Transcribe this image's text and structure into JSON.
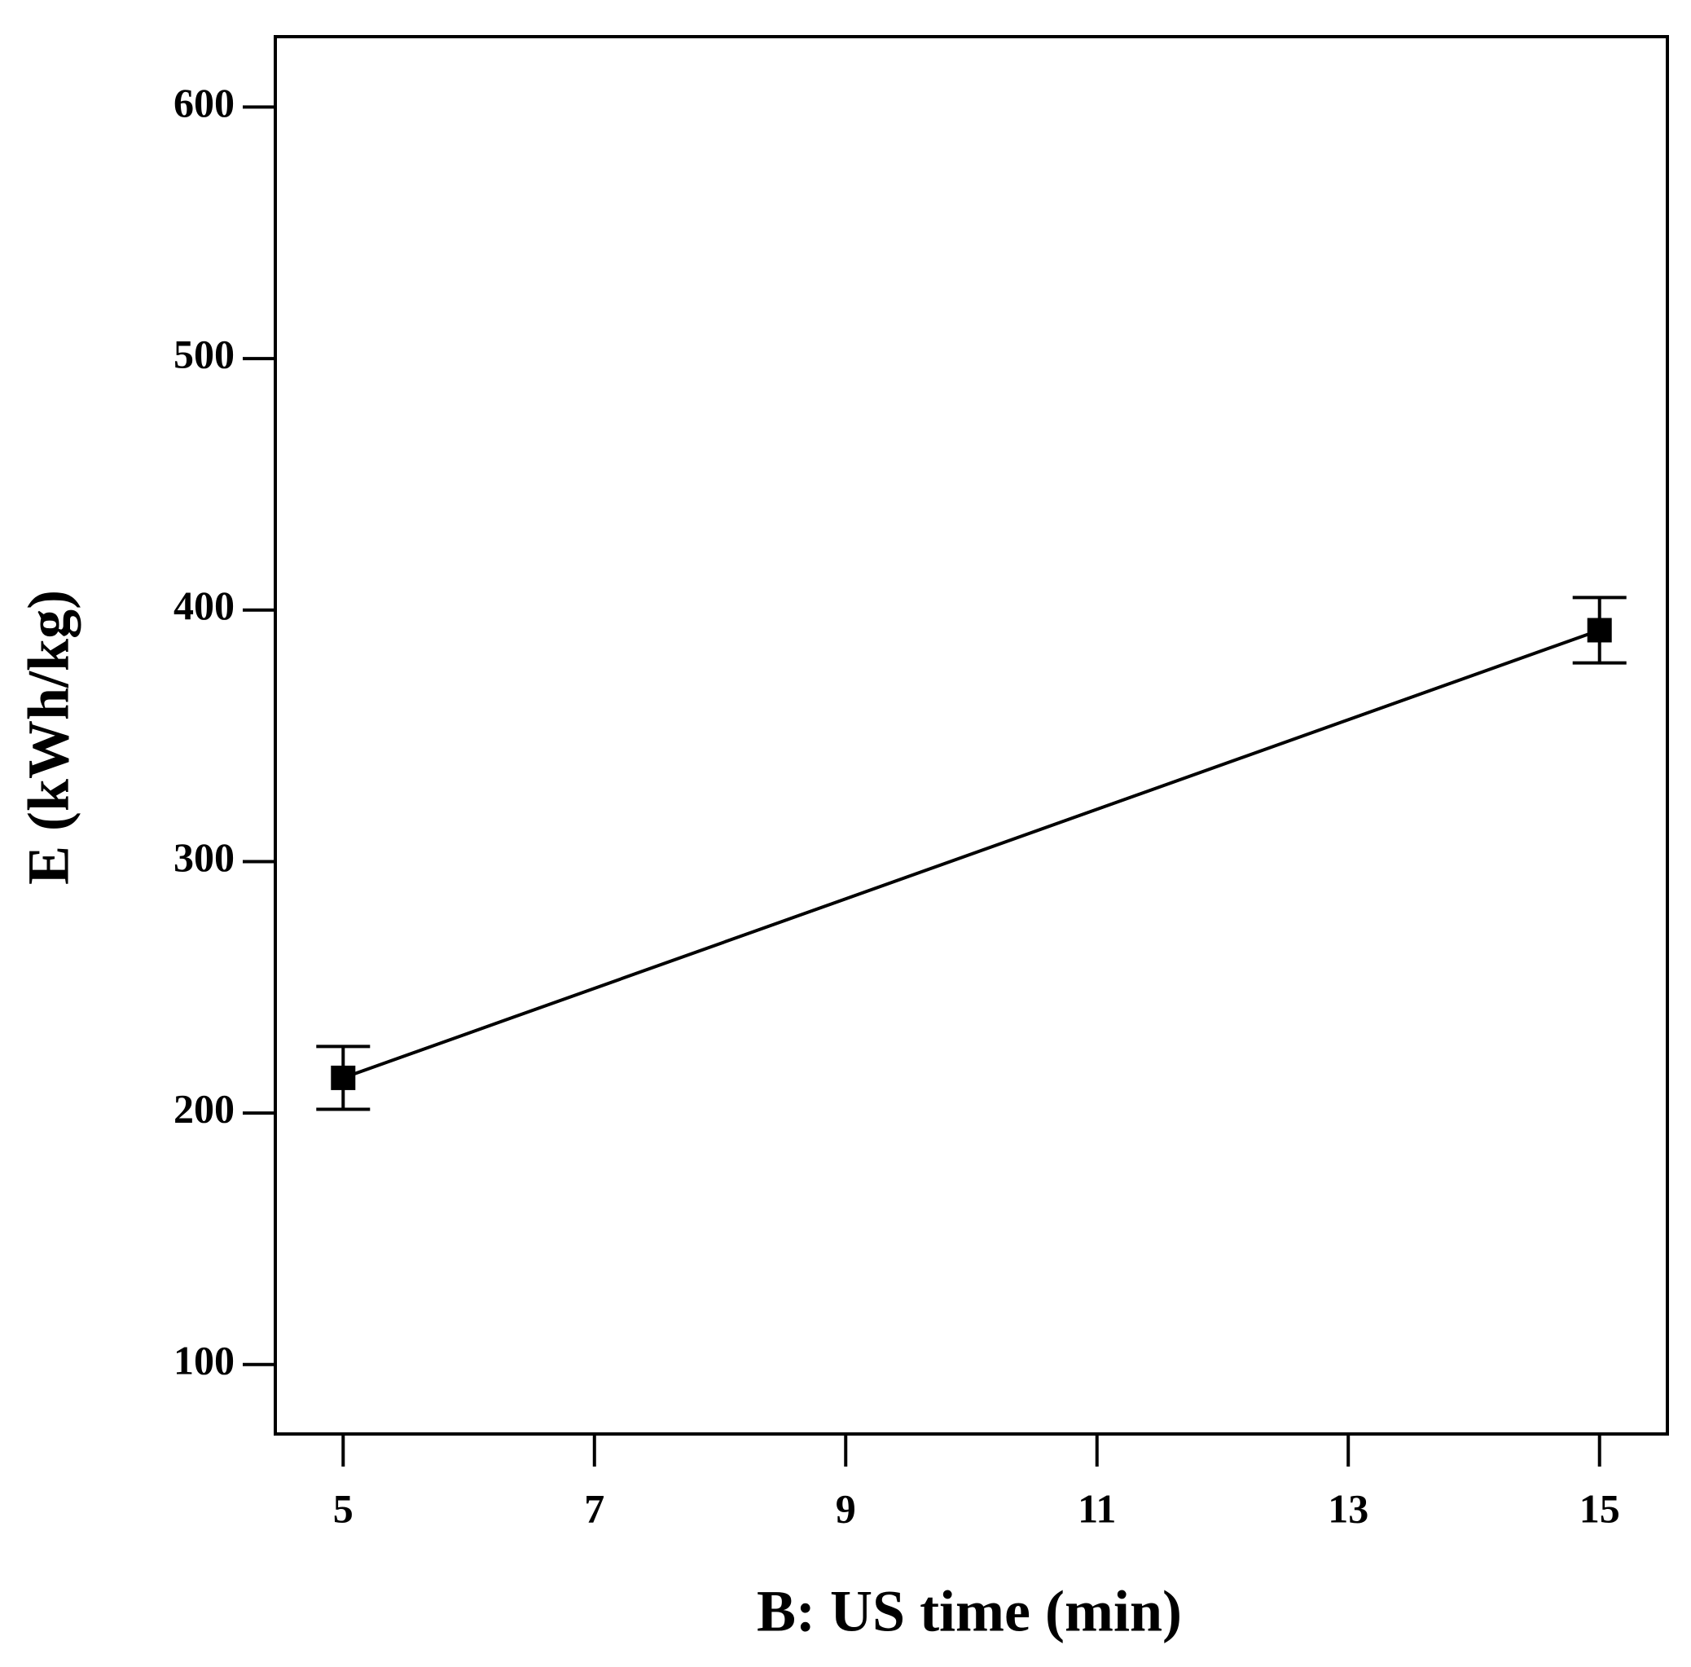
{
  "chart_data": {
    "type": "line",
    "xlabel": "B: US time (min)",
    "ylabel": "E (kWh/kg)",
    "x": [
      5,
      15
    ],
    "series": [
      {
        "color": "#000000",
        "values": [
          214,
          392
        ],
        "errors": [
          12.5,
          13
        ]
      }
    ],
    "xlim": [
      4.46,
      15.54
    ],
    "xticks": [
      5,
      7,
      9,
      11,
      13,
      15
    ],
    "ylim": [
      72.4,
      628
    ],
    "yticks": [
      100,
      200,
      300,
      400,
      500,
      600
    ],
    "grid": false
  }
}
